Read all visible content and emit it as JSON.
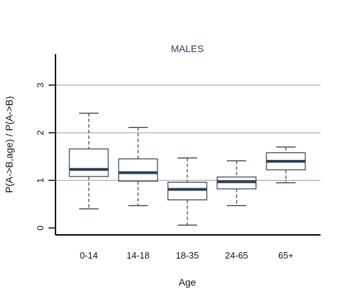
{
  "chart_data": {
    "type": "boxplot",
    "title": "MALES",
    "xlabel": "Age",
    "ylabel": "P(A->B,age) / P(A->B)",
    "ylim": [
      0,
      3.6
    ],
    "yticks": [
      0,
      1,
      2,
      3
    ],
    "ytick_labels": [
      "0",
      "1",
      "2",
      "3"
    ],
    "grid": "horizontal reference lines at 1, 2, 3",
    "box_color": "#2c3e50",
    "grid_color": "#aaaaaa",
    "categories": [
      "0-14",
      "14-18",
      "18-35",
      "24-65",
      "65+"
    ],
    "boxes": [
      {
        "category": "0-14",
        "whisker_low": 0.4,
        "q1": 1.08,
        "median": 1.23,
        "q3": 1.66,
        "whisker_high": 2.41
      },
      {
        "category": "14-18",
        "whisker_low": 0.47,
        "q1": 0.98,
        "median": 1.16,
        "q3": 1.45,
        "whisker_high": 2.11
      },
      {
        "category": "18-35",
        "whisker_low": 0.06,
        "q1": 0.59,
        "median": 0.81,
        "q3": 0.96,
        "whisker_high": 1.47
      },
      {
        "category": "24-65",
        "whisker_low": 0.47,
        "q1": 0.82,
        "median": 0.97,
        "q3": 1.07,
        "whisker_high": 1.41
      },
      {
        "category": "65+",
        "whisker_low": 0.95,
        "q1": 1.22,
        "median": 1.4,
        "q3": 1.58,
        "whisker_high": 1.7
      }
    ]
  }
}
